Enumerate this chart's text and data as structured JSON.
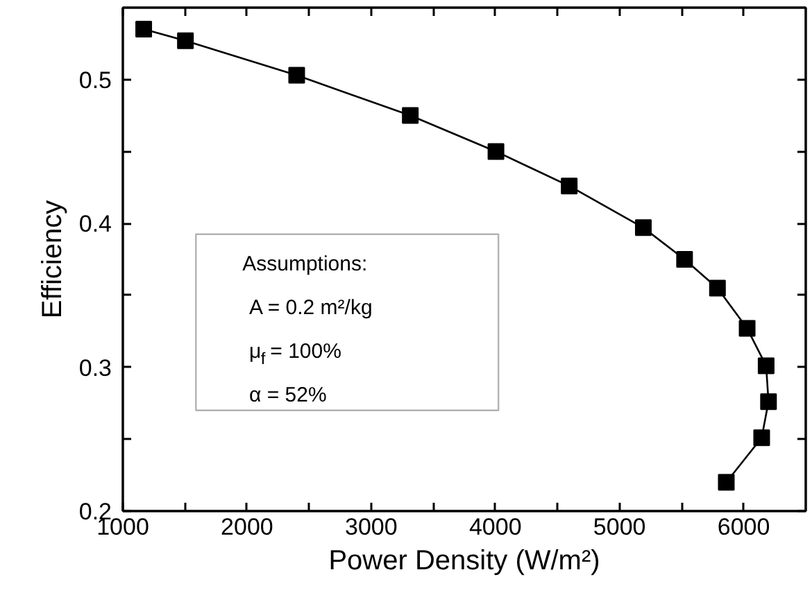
{
  "chart_data": {
    "type": "line",
    "xlabel": "Power Density (W/m²)",
    "ylabel": "Efficiency",
    "x": [
      1168,
      1504,
      2400,
      3315,
      4005,
      4595,
      5192,
      5524,
      5789,
      6028,
      6181,
      6200,
      6145,
      5860
    ],
    "series": [
      {
        "color": "#000000",
        "values": [
          0.535,
          0.527,
          0.503,
          0.475,
          0.45,
          0.426,
          0.397,
          0.375,
          0.355,
          0.327,
          0.301,
          0.276,
          0.251,
          0.22
        ]
      }
    ],
    "marker": "square",
    "line_style": "solid",
    "grid": false,
    "xlim": [
      1000,
      6500
    ],
    "ylim": [
      0.2,
      0.55
    ],
    "xticks": [
      1000,
      {
        "value": 1500,
        "label": null
      },
      2000,
      {
        "value": 2500,
        "label": null
      },
      3000,
      {
        "value": 3500,
        "label": null
      },
      4000,
      {
        "value": 4500,
        "label": null
      },
      5000,
      {
        "value": 5500,
        "label": null
      },
      6000
    ],
    "yticks": [
      0.2,
      {
        "value": 0.25,
        "label": null
      },
      0.3,
      {
        "value": 0.35,
        "label": null
      },
      0.4,
      {
        "value": 0.45,
        "label": null
      },
      0.5
    ],
    "annotations": [
      "Assumptions:",
      "A = 0.2 m²/kg",
      "μ$_{f}$ = 100%",
      "α = 52%"
    ]
  }
}
